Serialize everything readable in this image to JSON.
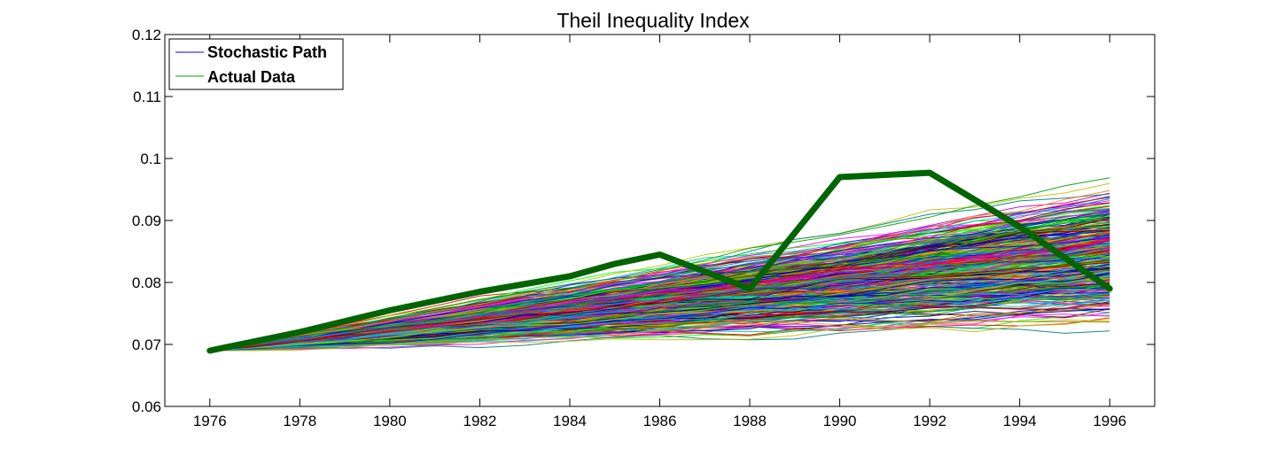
{
  "chart_data": {
    "type": "line",
    "title": "Theil Inequality Index",
    "xlabel": "",
    "ylabel": "",
    "xlim": [
      1975,
      1997
    ],
    "ylim": [
      0.06,
      0.12
    ],
    "xticks": [
      1976,
      1978,
      1980,
      1982,
      1984,
      1986,
      1988,
      1990,
      1992,
      1994,
      1996
    ],
    "xtick_labels": [
      "1976",
      "1978",
      "1980",
      "1982",
      "1984",
      "1986",
      "1988",
      "1990",
      "1992",
      "1994",
      "1996"
    ],
    "yticks": [
      0.06,
      0.07,
      0.08,
      0.09,
      0.1,
      0.11,
      0.12
    ],
    "ytick_labels": [
      "0.06",
      "0.07",
      "0.08",
      "0.09",
      "0.1",
      "0.11",
      "0.12"
    ],
    "grid": false,
    "legend_position": "top-left",
    "legend": [
      "Stochastic Path",
      "Actual Data"
    ],
    "stochastic": {
      "name": "Stochastic Path",
      "start": [
        1976,
        0.069
      ],
      "end_range": [
        0.071,
        0.098
      ],
      "colors": [
        "#0000ff",
        "#00a000",
        "#ff0000",
        "#00bfbf",
        "#bf00bf",
        "#bfbf00",
        "#000080",
        "#ff00ff",
        "#008080",
        "#808000",
        "#00ff00",
        "#800000",
        "#0080ff",
        "#ff8000"
      ]
    },
    "series": [
      {
        "name": "Actual Data",
        "color": "#006400",
        "x": [
          1976,
          1978,
          1980,
          1982,
          1984,
          1985,
          1986,
          1988,
          1990,
          1992,
          1994,
          1996
        ],
        "y": [
          0.069,
          0.072,
          0.0755,
          0.0785,
          0.081,
          0.083,
          0.0845,
          0.079,
          0.097,
          0.0977,
          0.089,
          0.079
        ]
      }
    ]
  }
}
